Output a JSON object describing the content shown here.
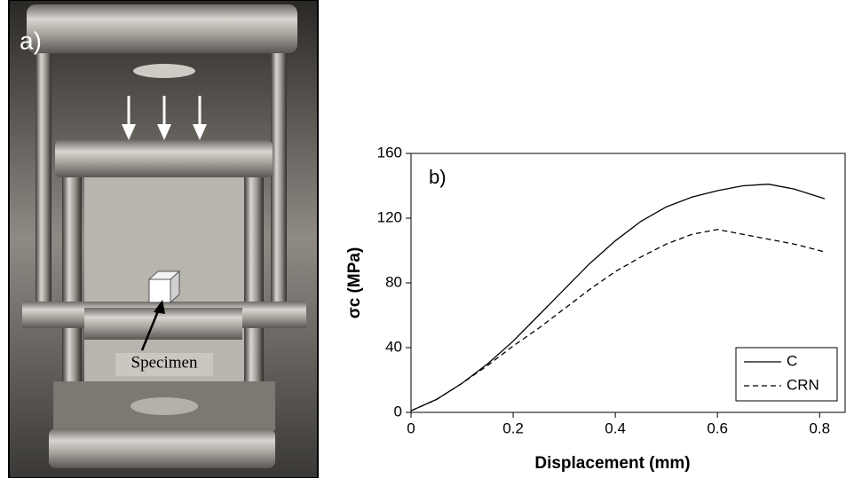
{
  "photo": {
    "panel_label": "a)",
    "annotation": "Specimen"
  },
  "chart_data": {
    "type": "line",
    "panel_label": "b)",
    "x_label": "Displacement (mm)",
    "y_label": "σc (MPa)",
    "x": [
      0,
      0.05,
      0.1,
      0.15,
      0.2,
      0.25,
      0.3,
      0.35,
      0.4,
      0.45,
      0.5,
      0.55,
      0.6,
      0.65,
      0.7,
      0.75,
      0.8,
      0.81
    ],
    "series": [
      {
        "name": "C",
        "color": "#000000",
        "style": "solid",
        "values": [
          1,
          8,
          18,
          30,
          44,
          60,
          76,
          92,
          106,
          118,
          127,
          133,
          137,
          140,
          141,
          138,
          133,
          132
        ]
      },
      {
        "name": "CRN",
        "color": "#000000",
        "style": "dashed",
        "values": [
          1,
          8,
          18,
          29,
          41,
          52,
          64,
          76,
          87,
          96,
          104,
          110,
          113,
          110,
          107,
          104,
          100,
          99
        ]
      }
    ],
    "xlim": [
      0,
      0.85
    ],
    "xticks": [
      0,
      0.2,
      0.4,
      0.6,
      0.8
    ],
    "ylim": [
      0,
      160
    ],
    "yticks": [
      0,
      40,
      80,
      120,
      160
    ],
    "grid": false,
    "legend": "lower right"
  }
}
